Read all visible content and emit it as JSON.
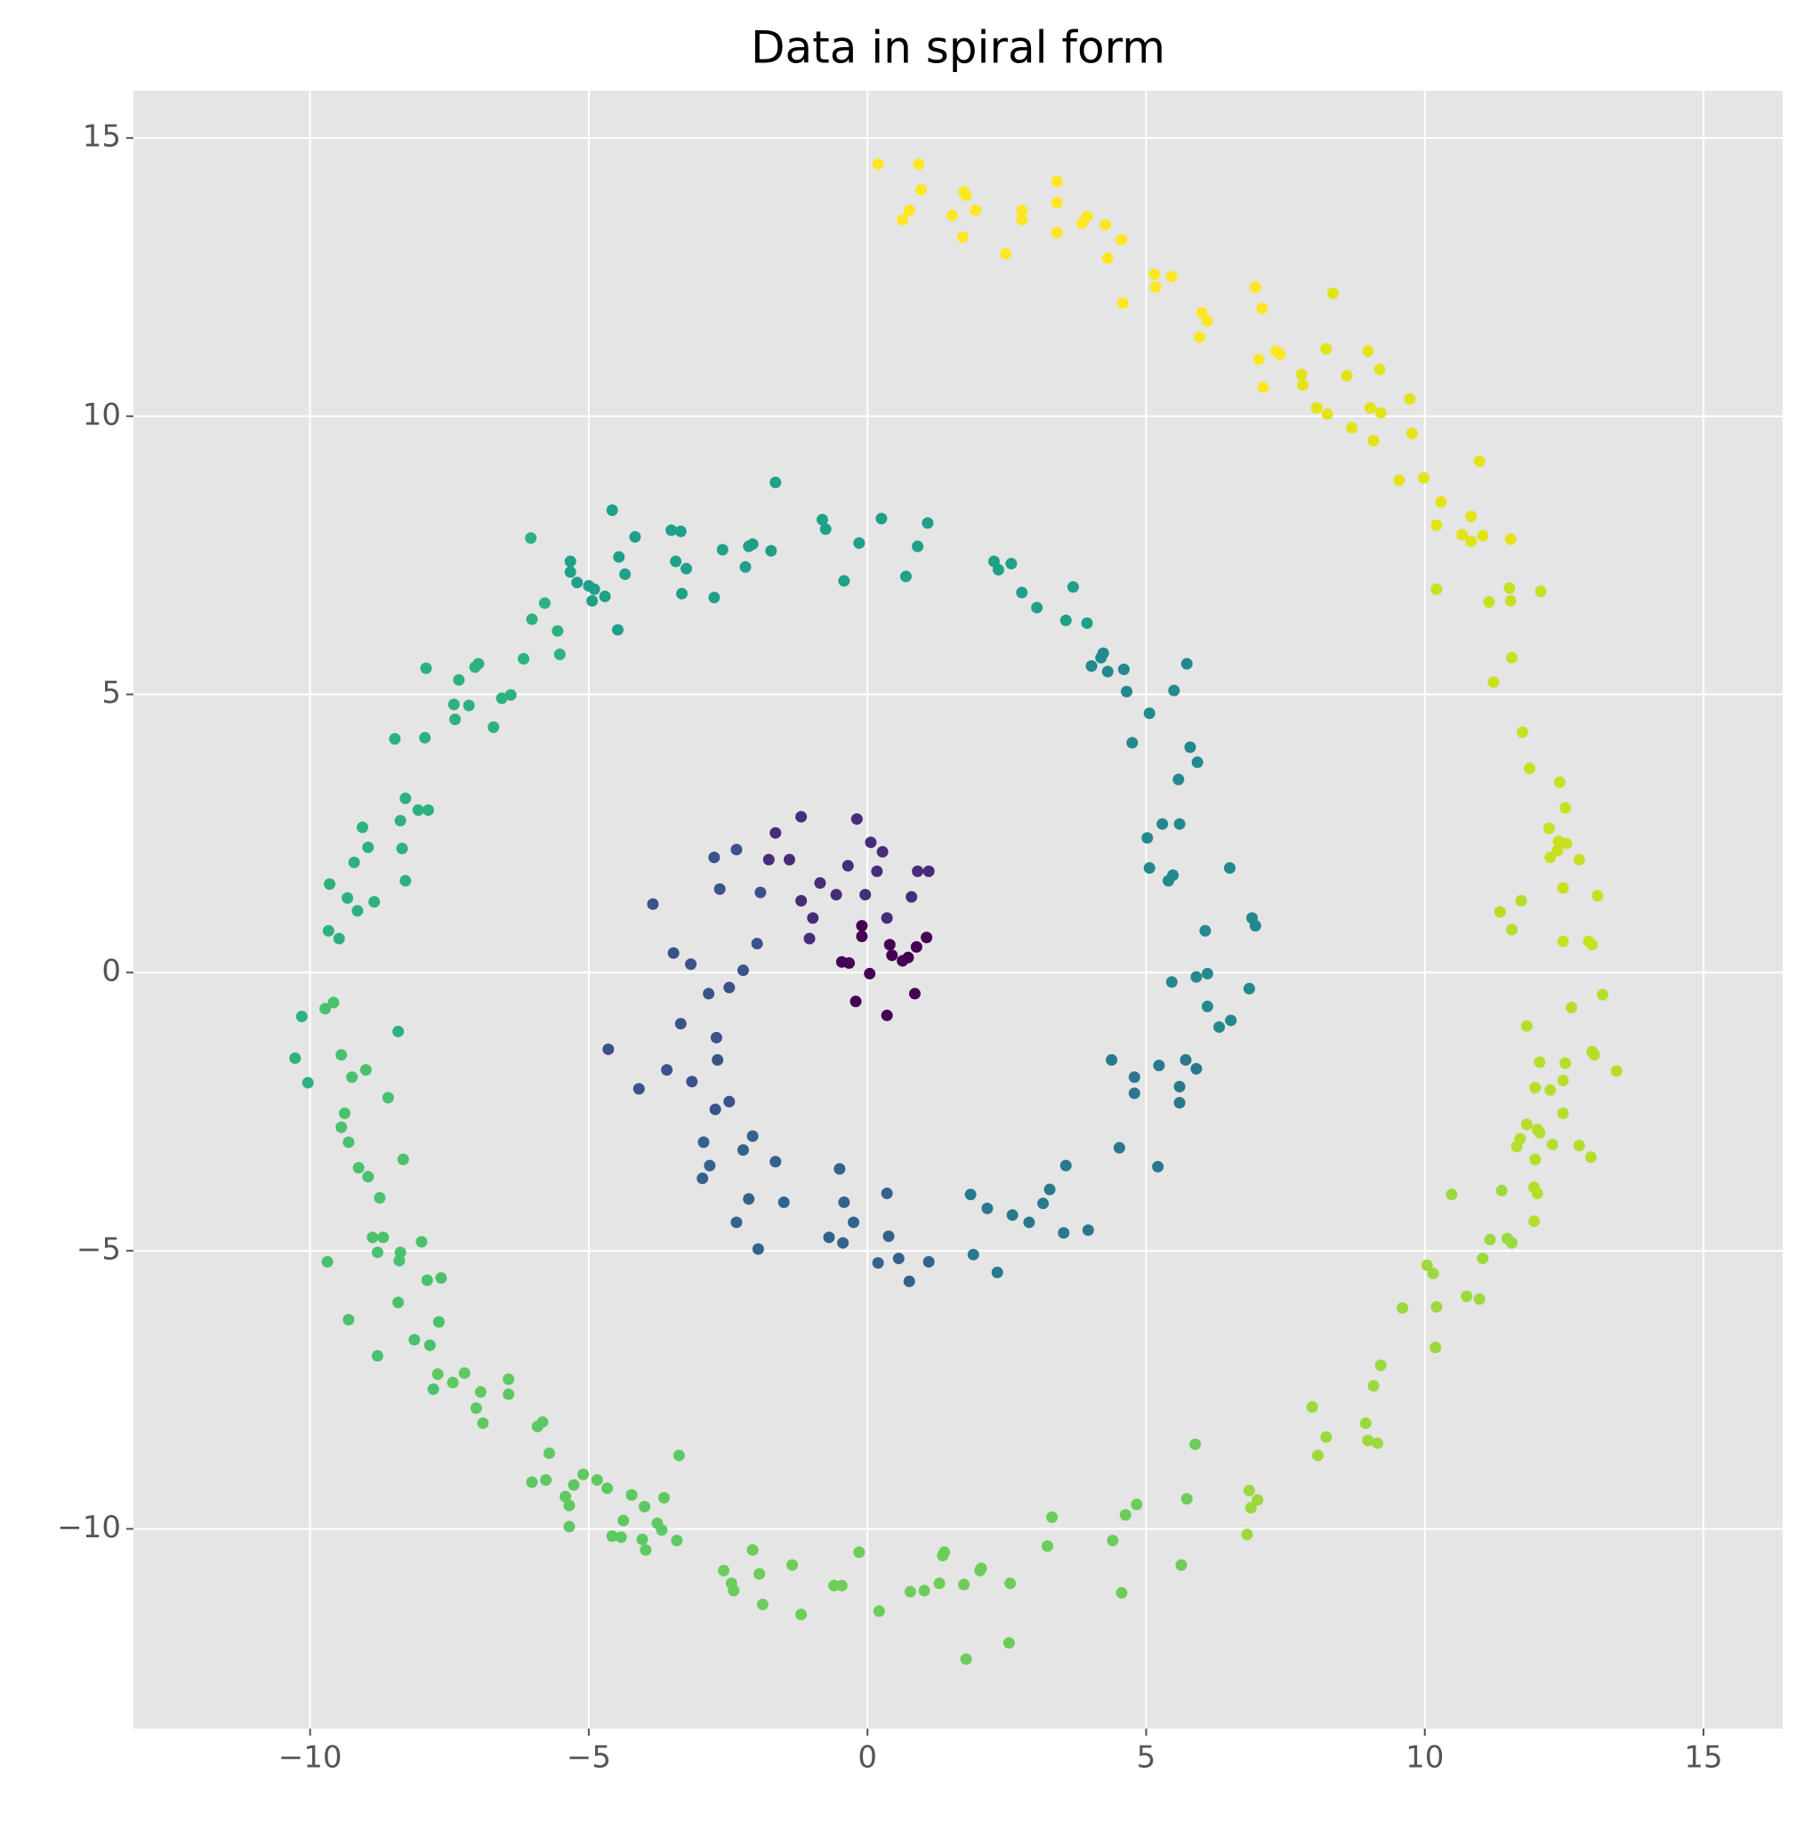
{
  "chart_data": {
    "type": "scatter",
    "title": "Data in spiral form",
    "xlim": [
      -13.17,
      16.42
    ],
    "ylim": [
      -13.59,
      15.85
    ],
    "xticks": [
      {
        "value": -10,
        "label": "−10"
      },
      {
        "value": -5,
        "label": "−5"
      },
      0,
      5,
      10,
      15
    ],
    "yticks": [
      {
        "value": -10,
        "label": "−10"
      },
      {
        "value": -5,
        "label": "−5"
      },
      0,
      5,
      10,
      15
    ],
    "grid": true,
    "series": [
      {
        "color": "#440154",
        "x": [
          -0.46,
          -0.21,
          0.35,
          0.85,
          0.44,
          0.63,
          1.06,
          0.88,
          -0.1,
          -0.1,
          0.4,
          0.04,
          -0.33,
          0.73
        ],
        "y": [
          0.19,
          -0.52,
          -0.77,
          -0.38,
          0.31,
          0.21,
          0.63,
          0.46,
          0.65,
          0.84,
          0.5,
          -0.02,
          0.17,
          0.27
        ]
      },
      {
        "color": "#472c7a",
        "x": [
          -0.19,
          0.27,
          -1.19,
          -1.65,
          -0.85,
          -1.19,
          0.06,
          -0.35,
          0.17,
          0.9,
          1.1,
          0.79,
          0.35,
          -0.04,
          -0.56,
          -1.04,
          -1.4,
          -1.77,
          -0.98
        ],
        "y": [
          2.76,
          2.17,
          2.8,
          2.51,
          1.61,
          1.29,
          2.34,
          1.92,
          1.82,
          1.82,
          1.82,
          1.36,
          0.98,
          1.4,
          1.4,
          0.61,
          2.03,
          2.03,
          0.98
        ]
      },
      {
        "color": "#3b528b",
        "x": [
          -2.35,
          -2.75,
          -2.65,
          -1.92,
          -1.98,
          -2.23,
          -3.85,
          -3.48,
          -3.17,
          -2.85,
          -2.48,
          -3.35,
          -4.65,
          -4.1,
          -3.6,
          -2.71,
          -2.69,
          -3.15,
          -2.73,
          -2.48
        ],
        "y": [
          2.21,
          2.07,
          1.5,
          1.44,
          0.52,
          0.04,
          1.23,
          0.35,
          0.15,
          -0.38,
          -0.27,
          -0.92,
          -1.38,
          -2.09,
          -1.75,
          -1.17,
          -1.57,
          -1.96,
          -2.46,
          -2.32
        ]
      },
      {
        "color": "#33638d",
        "x": [
          -2.94,
          -2.83,
          -2.96,
          -2.23,
          -2.06,
          -1.65,
          -2.35,
          -2.13,
          -1.96,
          -1.5,
          -0.69,
          -0.44,
          -0.25,
          -0.42,
          -0.5,
          0.19,
          0.56,
          0.75,
          1.1,
          0.38,
          0.35
        ],
        "y": [
          -3.05,
          -3.47,
          -3.7,
          -3.19,
          -2.94,
          -3.4,
          -4.49,
          -4.07,
          -4.97,
          -4.13,
          -4.76,
          -4.86,
          -4.49,
          -4.13,
          -3.53,
          -5.22,
          -5.14,
          -5.55,
          -5.2,
          -4.74,
          -3.97
        ]
      },
      {
        "color": "#2a788e",
        "x": [
          1.85,
          2.15,
          1.9,
          2.33,
          2.6,
          2.9,
          3.15,
          3.27,
          3.52,
          3.96,
          3.56,
          4.52,
          4.38,
          4.79,
          4.79,
          5.21,
          5.23,
          5.6,
          5.6,
          5.71,
          5.9
        ],
        "y": [
          -3.99,
          -4.24,
          -5.07,
          -5.39,
          -4.36,
          -4.49,
          -4.15,
          -3.9,
          -4.68,
          -4.63,
          -3.47,
          -3.15,
          -1.57,
          -1.88,
          -2.17,
          -3.49,
          -1.67,
          -2.34,
          -2.05,
          -1.57,
          -1.73
        ]
      },
      {
        "color": "#23898e",
        "x": [
          5.46,
          5.48,
          5.4,
          5.06,
          5.02,
          5.29,
          5.6,
          5.58,
          5.92,
          5.79,
          6.06,
          6.1,
          6.1,
          6.31,
          6.52,
          5.9,
          6.5,
          6.9,
          6.96,
          6.85,
          4.75,
          5.06,
          5.5,
          5.73,
          4.65,
          4.6,
          4.31,
          4.19,
          4.02,
          4.23
        ],
        "y": [
          -0.17,
          1.75,
          1.65,
          1.88,
          2.42,
          2.67,
          2.67,
          3.47,
          3.78,
          4.05,
          0.75,
          -0.02,
          -0.61,
          -0.98,
          -0.86,
          -0.08,
          1.88,
          0.98,
          0.84,
          -0.29,
          4.13,
          4.66,
          5.07,
          5.55,
          5.05,
          5.45,
          5.41,
          5.66,
          5.51,
          5.74
        ]
      },
      {
        "color": "#1fa088",
        "x": [
          3.94,
          3.69,
          3.56,
          3.04,
          2.77,
          2.58,
          2.27,
          2.35,
          1.08,
          0.9,
          0.69,
          0.25,
          -0.15,
          -0.42,
          -0.75,
          -0.81,
          -1.65,
          -1.73,
          -2.06,
          -2.13,
          -2.19,
          -2.6,
          -2.75,
          -3.25,
          -3.33,
          -3.44,
          -3.35,
          -3.52,
          -4.17,
          -4.35,
          -4.46,
          -4.58,
          -4.48,
          -4.71,
          -4.9,
          -5.0,
          -4.94,
          -5.21,
          -5.33,
          -5.33
        ],
        "y": [
          6.28,
          6.93,
          6.33,
          6.56,
          6.83,
          7.35,
          7.39,
          7.24,
          8.08,
          7.66,
          7.12,
          8.16,
          7.72,
          7.04,
          7.97,
          8.14,
          8.81,
          7.58,
          7.7,
          7.66,
          7.29,
          7.6,
          6.74,
          7.26,
          6.81,
          7.39,
          7.93,
          7.95,
          7.83,
          7.16,
          7.47,
          8.31,
          6.16,
          6.76,
          6.89,
          6.95,
          6.68,
          7.01,
          7.39,
          7.2
        ]
      },
      {
        "color": "#2db27d",
        "x": [
          -6.04,
          -5.56,
          -5.52,
          -5.79,
          -6.02,
          -6.17,
          -6.4,
          -6.56,
          -6.71,
          -6.98,
          -7.04,
          -7.15,
          -7.33,
          -7.42,
          -7.4,
          -7.92,
          -7.94,
          -8.48,
          -8.29,
          -8.06,
          -7.88,
          -8.38,
          -8.35,
          -8.29,
          -8.96,
          -9.06,
          -9.21,
          -9.33,
          -9.15,
          -8.85,
          -9.65,
          -9.67,
          -9.48,
          -8.42,
          -10.15,
          -10.27,
          -10.04
        ],
        "y": [
          7.81,
          6.14,
          5.72,
          6.64,
          6.35,
          5.64,
          4.99,
          4.93,
          4.41,
          5.55,
          5.49,
          4.8,
          5.26,
          4.82,
          4.55,
          5.47,
          4.22,
          4.2,
          3.13,
          2.92,
          2.92,
          2.73,
          2.23,
          1.65,
          2.25,
          2.61,
          1.98,
          1.34,
          1.11,
          1.27,
          1.59,
          0.75,
          0.61,
          -1.06,
          -0.79,
          -1.54,
          -1.98
        ]
      },
      {
        "color": "#4ac16d",
        "x": [
          -9.58,
          -9.73,
          -9.44,
          -9.25,
          -9.0,
          -9.38,
          -8.6,
          -9.44,
          -9.31,
          -9.13,
          -8.33,
          -8.96,
          -8.75,
          -8.88,
          -8.69,
          -8.38,
          -8.4,
          -8.79,
          -9.69,
          -8.0,
          -7.9,
          -7.65,
          -8.42,
          -9.31,
          -7.69,
          -8.79,
          -8.13,
          -7.85,
          -7.79
        ],
        "y": [
          -0.54,
          -0.65,
          -1.48,
          -1.88,
          -1.75,
          -2.53,
          -2.25,
          -2.78,
          -3.05,
          -3.51,
          -3.36,
          -3.67,
          -4.05,
          -4.76,
          -4.76,
          -5.03,
          -5.18,
          -5.03,
          -5.2,
          -4.84,
          -5.53,
          -5.49,
          -5.93,
          -6.24,
          -6.28,
          -6.89,
          -6.6,
          -6.7,
          -7.49
        ]
      },
      {
        "color": "#5ec962",
        "x": [
          -7.71,
          -7.23,
          -7.44,
          -7.02,
          -6.94,
          -6.9,
          -6.44,
          -6.44,
          -5.92,
          -5.83,
          -5.71,
          -6.02,
          -5.77,
          -5.42,
          -5.35,
          -5.35,
          -5.27,
          -5.1,
          -4.85,
          -4.67,
          -4.58,
          -4.38,
          -4.42,
          -4.23,
          -4.04,
          -4.0,
          -3.98,
          -3.77,
          -3.69,
          -3.42,
          -3.65,
          -3.38
        ],
        "y": [
          -7.22,
          -7.2,
          -7.37,
          -7.83,
          -7.54,
          -8.1,
          -7.31,
          -7.58,
          -8.16,
          -8.08,
          -8.64,
          -9.16,
          -9.12,
          -9.42,
          -9.58,
          -9.96,
          -9.21,
          -9.02,
          -9.12,
          -9.27,
          -10.13,
          -9.85,
          -10.15,
          -9.39,
          -10.19,
          -9.6,
          -10.38,
          -9.9,
          -10.02,
          -10.21,
          -9.44,
          -8.68
        ]
      },
      {
        "color": "#6ccd5a",
        "x": [
          -2.58,
          -2.44,
          -2.4,
          -2.06,
          -1.94,
          -1.88,
          -1.35,
          -1.19,
          -0.6,
          -0.46,
          -0.15,
          0.21,
          0.77,
          1.02,
          1.29,
          1.35,
          1.38,
          1.73,
          2.02,
          2.04,
          1.77,
          2.54,
          2.56,
          3.23,
          3.31,
          4.4,
          4.56,
          4.63,
          4.83,
          5.63,
          5.73,
          5.88
        ],
        "y": [
          -10.75,
          -10.98,
          -11.11,
          -10.38,
          -10.81,
          -11.36,
          -10.65,
          -11.54,
          -11.02,
          -11.02,
          -10.42,
          -11.48,
          -11.13,
          -11.11,
          -10.98,
          -10.48,
          -10.42,
          -11.0,
          -10.75,
          -10.71,
          -12.34,
          -12.05,
          -10.98,
          -10.31,
          -9.79,
          -10.21,
          -11.15,
          -9.75,
          -9.56,
          -10.65,
          -9.46,
          -8.48
        ]
      },
      {
        "color": "#9bd93c",
        "x": [
          6.81,
          6.88,
          6.85,
          7.0,
          7.98,
          8.08,
          8.23,
          8.94,
          8.98,
          9.15,
          9.08,
          9.21,
          9.6,
          10.19,
          10.21,
          10.15,
          10.04,
          10.48,
          10.75,
          10.98,
          11.04,
          11.17,
          11.48,
          11.56,
          11.38
        ],
        "y": [
          -10.1,
          -9.62,
          -9.31,
          -9.48,
          -7.81,
          -8.68,
          -8.35,
          -8.1,
          -8.41,
          -8.46,
          -7.43,
          -7.06,
          -6.03,
          -6.74,
          -6.01,
          -5.41,
          -5.26,
          -3.99,
          -5.82,
          -5.87,
          -5.14,
          -4.8,
          -4.78,
          -4.86,
          -3.92
        ]
      },
      {
        "color": "#b5de2b",
        "x": [
          11.65,
          11.71,
          11.98,
          11.96,
          12.02,
          11.96,
          11.83,
          11.98,
          12.06,
          12.02,
          12.06,
          12.29,
          12.25,
          12.48,
          12.48,
          12.52,
          12.77,
          12.98,
          13.0,
          13.04,
          13.44,
          12.63,
          13.19,
          11.83,
          11.56,
          11.35,
          11.73
        ],
        "y": [
          -3.13,
          -2.99,
          -3.36,
          -3.86,
          -3.97,
          -4.47,
          -2.73,
          -2.07,
          -1.61,
          -2.82,
          -2.88,
          -3.09,
          -2.11,
          -1.94,
          -2.53,
          -1.63,
          -3.11,
          -3.32,
          -1.42,
          -1.48,
          -1.77,
          -0.63,
          -0.4,
          -0.96,
          0.77,
          1.09,
          1.29
        ]
      },
      {
        "color": "#c8e020",
        "x": [
          12.48,
          12.94,
          13.0,
          13.1,
          12.48,
          12.77,
          12.54,
          12.38,
          12.4,
          12.23,
          12.25,
          12.52,
          12.42,
          11.88,
          11.75,
          11.23,
          11.56,
          11.54,
          11.52,
          12.08,
          11.15,
          10.21
        ],
        "y": [
          0.56,
          0.56,
          0.5,
          1.38,
          1.52,
          2.03,
          2.32,
          2.19,
          2.36,
          2.59,
          2.07,
          2.96,
          3.42,
          3.67,
          4.32,
          5.22,
          5.66,
          6.68,
          6.91,
          6.85,
          6.66,
          6.89
        ]
      },
      {
        "color": "#e2e418",
        "x": [
          11.54,
          11.04,
          10.83,
          10.67,
          10.83,
          10.21,
          10.29,
          10.98,
          9.98,
          9.54,
          9.77,
          9.73,
          9.21,
          9.08,
          9.02,
          8.69,
          9.19,
          8.98,
          8.6,
          8.25,
          8.06,
          7.81,
          7.79,
          8.23,
          8.35
        ],
        "y": [
          7.79,
          7.85,
          7.75,
          7.87,
          8.2,
          8.04,
          8.46,
          9.19,
          8.89,
          8.85,
          9.69,
          10.31,
          10.06,
          9.56,
          10.15,
          9.79,
          10.84,
          11.17,
          10.73,
          10.04,
          10.15,
          10.56,
          10.75,
          11.21,
          12.21
        ]
      },
      {
        "color": "#fde725",
        "x": [
          7.4,
          7.33,
          7.1,
          7.02,
          7.08,
          6.96,
          6.1,
          6.0,
          5.96,
          5.46,
          5.17,
          5.15,
          4.58,
          4.56,
          4.31,
          4.27,
          3.94,
          3.85,
          3.4,
          3.4,
          3.4,
          2.77,
          2.77,
          2.48,
          1.94,
          1.73,
          1.77,
          1.71,
          1.52,
          0.96,
          0.92,
          0.75,
          0.63,
          0.19
        ],
        "y": [
          11.11,
          11.17,
          10.52,
          11.02,
          11.94,
          12.32,
          11.71,
          11.86,
          11.42,
          12.51,
          12.32,
          12.55,
          12.03,
          13.17,
          12.84,
          13.44,
          13.59,
          13.47,
          13.3,
          13.84,
          14.22,
          13.7,
          13.53,
          12.92,
          13.7,
          14.03,
          13.97,
          13.22,
          13.61,
          14.07,
          14.53,
          13.7,
          13.53,
          14.53
        ]
      }
    ]
  }
}
